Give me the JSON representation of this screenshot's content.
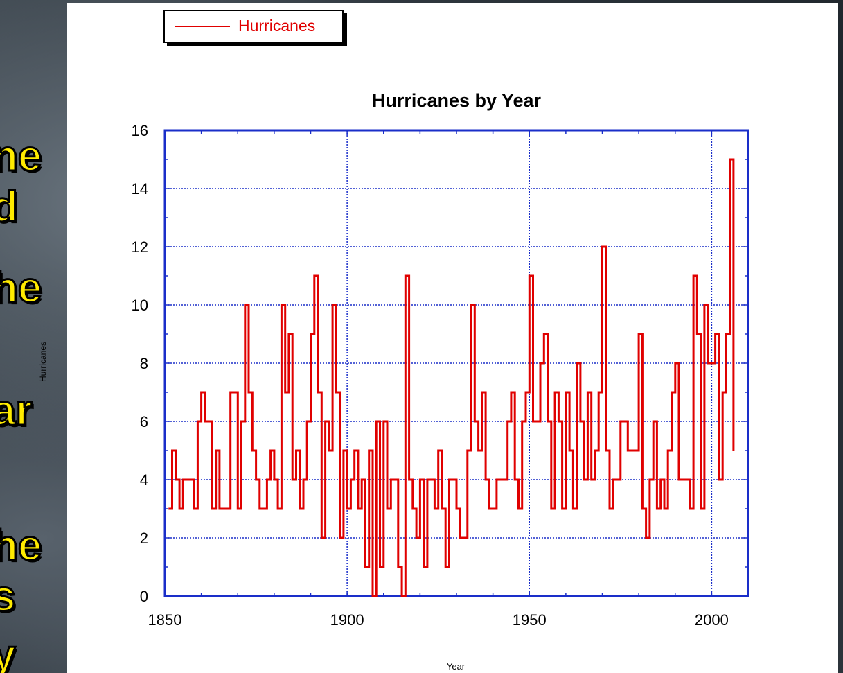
{
  "side_text": [
    "ne",
    "d",
    "he",
    "ar",
    "he",
    "s",
    "y"
  ],
  "legend": {
    "label": "Hurricanes",
    "color": "#e00000"
  },
  "chart_data": {
    "type": "line",
    "title": "Hurricanes by Year",
    "xlabel": "Year",
    "ylabel": "Hurricanes",
    "xlim": [
      1850,
      2010
    ],
    "ylim": [
      0,
      16
    ],
    "xticks": [
      1850,
      1900,
      1950,
      2000
    ],
    "yticks": [
      0,
      2,
      4,
      6,
      8,
      10,
      12,
      14,
      16
    ],
    "grid": true,
    "legend_position": "top-left",
    "axis_color": "#1a2ec9",
    "series_color": "#e00000",
    "series": [
      {
        "name": "Hurricanes",
        "x": [
          1851,
          1852,
          1853,
          1854,
          1855,
          1856,
          1857,
          1858,
          1859,
          1860,
          1861,
          1862,
          1863,
          1864,
          1865,
          1866,
          1867,
          1868,
          1869,
          1870,
          1871,
          1872,
          1873,
          1874,
          1875,
          1876,
          1877,
          1878,
          1879,
          1880,
          1881,
          1882,
          1883,
          1884,
          1885,
          1886,
          1887,
          1888,
          1889,
          1890,
          1891,
          1892,
          1893,
          1894,
          1895,
          1896,
          1897,
          1898,
          1899,
          1900,
          1901,
          1902,
          1903,
          1904,
          1905,
          1906,
          1907,
          1908,
          1909,
          1910,
          1911,
          1912,
          1913,
          1914,
          1915,
          1916,
          1917,
          1918,
          1919,
          1920,
          1921,
          1922,
          1923,
          1924,
          1925,
          1926,
          1927,
          1928,
          1929,
          1930,
          1931,
          1932,
          1933,
          1934,
          1935,
          1936,
          1937,
          1938,
          1939,
          1940,
          1941,
          1942,
          1943,
          1944,
          1945,
          1946,
          1947,
          1948,
          1949,
          1950,
          1951,
          1952,
          1953,
          1954,
          1955,
          1956,
          1957,
          1958,
          1959,
          1960,
          1961,
          1962,
          1963,
          1964,
          1965,
          1966,
          1967,
          1968,
          1969,
          1970,
          1971,
          1972,
          1973,
          1974,
          1975,
          1976,
          1977,
          1978,
          1979,
          1980,
          1981,
          1982,
          1983,
          1984,
          1985,
          1986,
          1987,
          1988,
          1989,
          1990,
          1991,
          1992,
          1993,
          1994,
          1995,
          1996,
          1997,
          1998,
          1999,
          2000,
          2001,
          2002,
          2003,
          2004,
          2005,
          2006
        ],
        "values": [
          3,
          5,
          4,
          3,
          4,
          4,
          4,
          3,
          6,
          7,
          6,
          6,
          3,
          5,
          3,
          3,
          3,
          7,
          7,
          3,
          6,
          10,
          7,
          5,
          4,
          3,
          3,
          4,
          5,
          4,
          3,
          10,
          7,
          9,
          4,
          5,
          3,
          4,
          6,
          9,
          11,
          7,
          2,
          6,
          5,
          10,
          7,
          2,
          5,
          3,
          4,
          5,
          3,
          4,
          1,
          5,
          0,
          6,
          1,
          6,
          3,
          4,
          4,
          1,
          0,
          11,
          4,
          3,
          2,
          4,
          1,
          4,
          4,
          3,
          5,
          3,
          1,
          4,
          4,
          3,
          2,
          2,
          5,
          10,
          6,
          5,
          7,
          4,
          3,
          3,
          4,
          4,
          4,
          6,
          7,
          4,
          3,
          6,
          7,
          11,
          6,
          6,
          8,
          9,
          6,
          3,
          7,
          6,
          3,
          7,
          5,
          3,
          8,
          6,
          4,
          7,
          4,
          5,
          7,
          12,
          5,
          3,
          4,
          4,
          6,
          6,
          5,
          5,
          5,
          9,
          3,
          2,
          4,
          6,
          3,
          4,
          3,
          5,
          7,
          8,
          4,
          4,
          4,
          3,
          11,
          9,
          3,
          10,
          8,
          8,
          9,
          4,
          7,
          9,
          15,
          5
        ]
      }
    ]
  }
}
